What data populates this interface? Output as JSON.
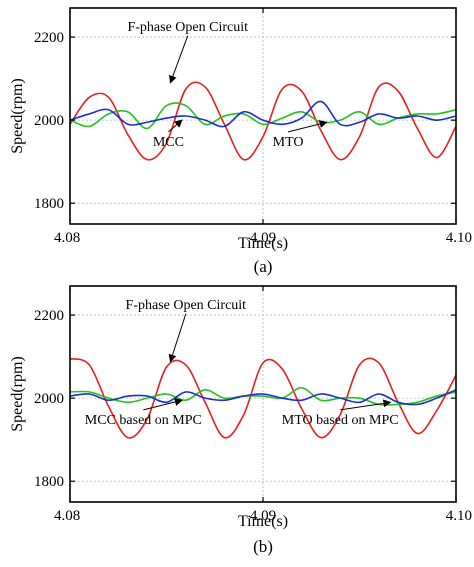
{
  "chart_data": [
    {
      "type": "line",
      "panel_label": "(a)",
      "xlabel": "Time(s)",
      "ylabel": "Speed(rpm)",
      "xlim": [
        4.08,
        4.1
      ],
      "ylim": [
        1750,
        2270
      ],
      "xticks": [
        4.08,
        4.09,
        4.1
      ],
      "xtick_labels": [
        "4.08",
        "4.09",
        "4.10"
      ],
      "yticks": [
        1800,
        2000,
        2200
      ],
      "ytick_labels": [
        "1800",
        "2000",
        "2200"
      ],
      "grid": true,
      "series": [
        {
          "color": "#e8201c",
          "x": [
            4.08,
            4.081,
            4.082,
            4.083,
            4.084,
            4.085,
            4.086,
            4.087,
            4.088,
            4.089,
            4.09,
            4.091,
            4.092,
            4.093,
            4.094,
            4.095,
            4.096,
            4.097,
            4.098,
            4.099,
            4.1
          ],
          "y": [
            1990,
            2055,
            2055,
            1965,
            1905,
            1945,
            2075,
            2080,
            1990,
            1905,
            1960,
            2075,
            2070,
            1975,
            1905,
            1960,
            2080,
            2070,
            1980,
            1910,
            1985
          ]
        },
        {
          "color": "#22c31e",
          "x": [
            4.08,
            4.081,
            4.082,
            4.083,
            4.084,
            4.085,
            4.086,
            4.087,
            4.088,
            4.089,
            4.09,
            4.091,
            4.092,
            4.093,
            4.094,
            4.095,
            4.096,
            4.097,
            4.098,
            4.099,
            4.1
          ],
          "y": [
            2000,
            1985,
            2015,
            2020,
            1980,
            2035,
            2035,
            1990,
            2010,
            2015,
            1990,
            2005,
            2020,
            1995,
            2000,
            2020,
            1990,
            2005,
            2015,
            2015,
            2025
          ]
        },
        {
          "color": "#1c2fcf",
          "x": [
            4.08,
            4.081,
            4.082,
            4.083,
            4.084,
            4.085,
            4.086,
            4.087,
            4.088,
            4.089,
            4.09,
            4.091,
            4.092,
            4.093,
            4.094,
            4.095,
            4.096,
            4.097,
            4.098,
            4.099,
            4.1
          ],
          "y": [
            2000,
            2015,
            2025,
            1990,
            1995,
            2005,
            2010,
            2000,
            1985,
            2020,
            2000,
            1990,
            2005,
            2045,
            1990,
            1995,
            2015,
            2005,
            2010,
            2000,
            2010
          ]
        }
      ],
      "annotations": [
        {
          "text": "F-phase Open Circuit",
          "x": 4.0861,
          "y": 2215,
          "arrow_to": [
            4.0852,
            2090
          ]
        },
        {
          "text": "MCC",
          "x": 4.0851,
          "y": 1938,
          "arrow_to": [
            4.0858,
            2000
          ]
        },
        {
          "text": "MTO",
          "x": 4.0913,
          "y": 1938,
          "arrow_to": [
            4.0933,
            1995
          ]
        }
      ]
    },
    {
      "type": "line",
      "panel_label": "(b)",
      "xlabel": "Time(s)",
      "ylabel": "Speed(rpm)",
      "xlim": [
        4.08,
        4.1
      ],
      "ylim": [
        1750,
        2270
      ],
      "xticks": [
        4.08,
        4.09,
        4.1
      ],
      "xtick_labels": [
        "4.08",
        "4.09",
        "4.10"
      ],
      "yticks": [
        1800,
        2000,
        2200
      ],
      "ytick_labels": [
        "1800",
        "2000",
        "2200"
      ],
      "grid": true,
      "series": [
        {
          "color": "#e8201c",
          "x": [
            4.08,
            4.081,
            4.082,
            4.083,
            4.084,
            4.085,
            4.086,
            4.087,
            4.088,
            4.089,
            4.09,
            4.091,
            4.092,
            4.093,
            4.094,
            4.095,
            4.096,
            4.097,
            4.098,
            4.099,
            4.1
          ],
          "y": [
            2095,
            2080,
            1980,
            1905,
            1950,
            2075,
            2080,
            1990,
            1905,
            1960,
            2085,
            2070,
            1975,
            1905,
            1960,
            2080,
            2085,
            1990,
            1915,
            1970,
            2055
          ]
        },
        {
          "color": "#22c31e",
          "x": [
            4.08,
            4.081,
            4.082,
            4.083,
            4.084,
            4.085,
            4.086,
            4.087,
            4.088,
            4.089,
            4.09,
            4.091,
            4.092,
            4.093,
            4.094,
            4.095,
            4.096,
            4.097,
            4.098,
            4.099,
            4.1
          ],
          "y": [
            2015,
            2015,
            2000,
            1990,
            2000,
            2010,
            1995,
            2020,
            2000,
            2005,
            2005,
            2000,
            2025,
            1995,
            2000,
            2000,
            1985,
            1985,
            1990,
            2005,
            2015
          ]
        },
        {
          "color": "#1c2fcf",
          "x": [
            4.08,
            4.081,
            4.082,
            4.083,
            4.084,
            4.085,
            4.086,
            4.087,
            4.088,
            4.089,
            4.09,
            4.091,
            4.092,
            4.093,
            4.094,
            4.095,
            4.096,
            4.097,
            4.098,
            4.099,
            4.1
          ],
          "y": [
            2005,
            2010,
            1995,
            2005,
            2005,
            1990,
            2015,
            2000,
            1995,
            2005,
            2010,
            2000,
            1995,
            2010,
            2000,
            1990,
            2010,
            1990,
            1985,
            2000,
            2020
          ]
        }
      ],
      "annotations": [
        {
          "text": "F-phase Open Circuit",
          "x": 4.086,
          "y": 2215,
          "arrow_to": [
            4.0852,
            2088
          ]
        },
        {
          "text": "MCC based on MPC",
          "x": 4.0838,
          "y": 1938,
          "arrow_to": [
            4.0858,
            1995
          ]
        },
        {
          "text": "MTO based on MPC",
          "x": 4.094,
          "y": 1938,
          "arrow_to": [
            4.0966,
            1990
          ]
        }
      ]
    }
  ]
}
